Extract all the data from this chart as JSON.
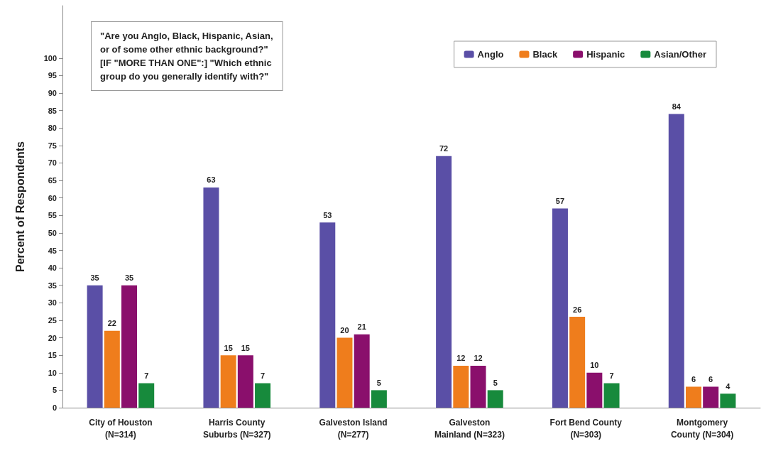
{
  "chart_data": {
    "type": "bar",
    "ylabel": "Percent of Respondents",
    "categories": [
      "City of Houston\n(N=314)",
      "Harris County\nSuburbs (N=327)",
      "Galveston Island\n(N=277)",
      "Galveston\nMainland (N=323)",
      "Fort Bend County\n(N=303)",
      "Montgomery\nCounty (N=304)"
    ],
    "series": [
      {
        "name": "Anglo",
        "color": "#5a4fa6",
        "values": [
          35,
          63,
          53,
          72,
          57,
          84
        ]
      },
      {
        "name": "Black",
        "color": "#ef7d1c",
        "values": [
          22,
          15,
          20,
          12,
          26,
          6
        ]
      },
      {
        "name": "Hispanic",
        "color": "#8a0f6c",
        "values": [
          35,
          15,
          21,
          12,
          10,
          6
        ]
      },
      {
        "name": "Asian/Other",
        "color": "#178a3c",
        "values": [
          7,
          7,
          5,
          5,
          7,
          4
        ]
      }
    ],
    "ylim": [
      0,
      115
    ],
    "yticks": [
      0,
      5,
      10,
      15,
      20,
      25,
      30,
      35,
      40,
      45,
      50,
      55,
      60,
      65,
      70,
      75,
      80,
      85,
      90,
      95,
      100
    ],
    "data_labels": true,
    "grid": false,
    "legend": "top right",
    "annotations": [
      "\"Are you Anglo, Black, Hispanic, Asian,\nor of some other ethnic background?\"\n[IF \"MORE THAN ONE\":] \"Which ethnic\ngroup do you generally identify with?\""
    ]
  }
}
